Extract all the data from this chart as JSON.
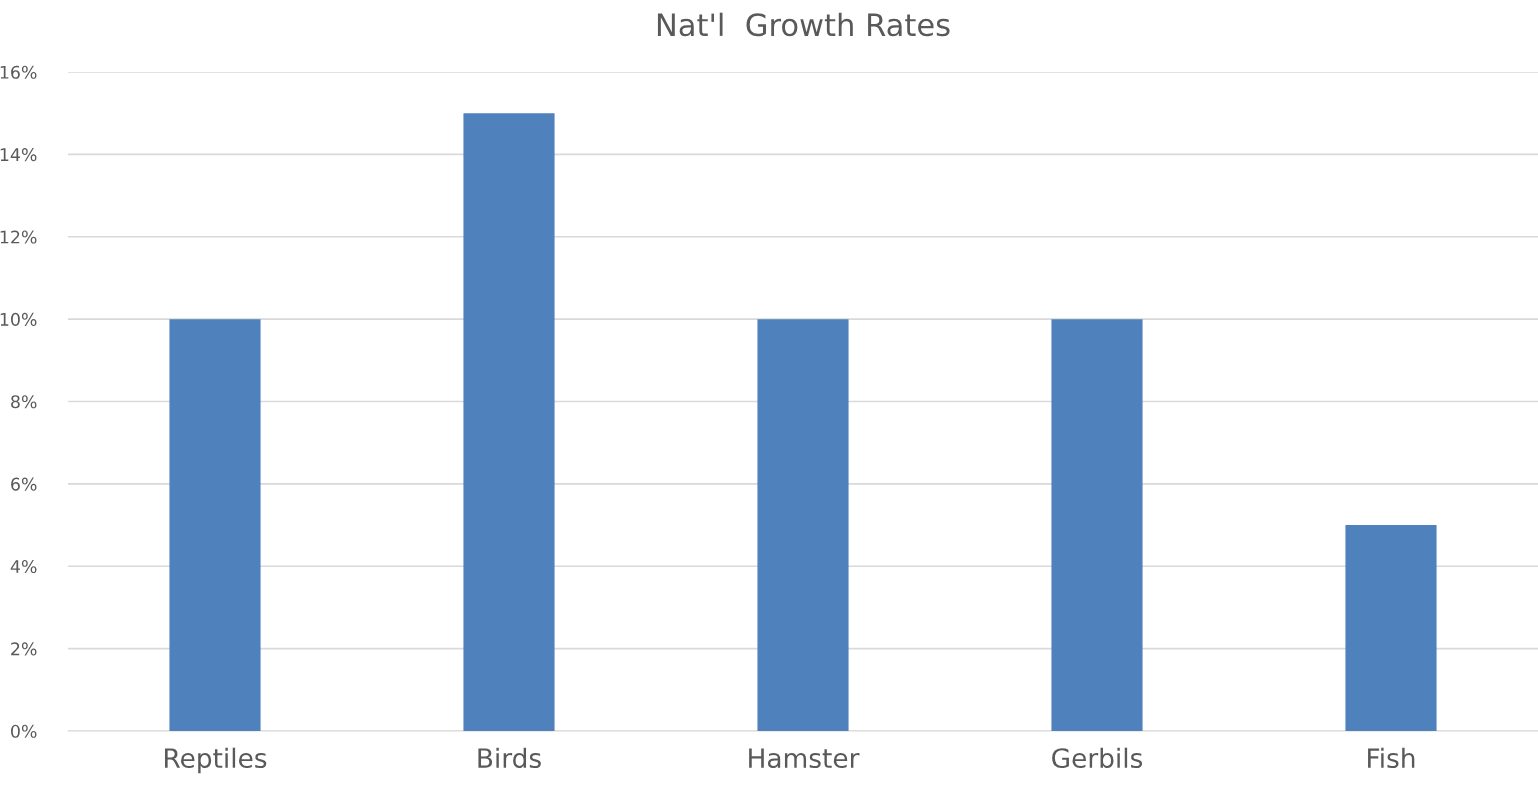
{
  "chart_data": {
    "type": "bar",
    "title": "Nat'l  Growth Rates",
    "categories": [
      "Reptiles",
      "Birds",
      "Hamster",
      "Gerbils",
      "Fish"
    ],
    "values": [
      10,
      15,
      10,
      10,
      5
    ],
    "color": "#4f81bd",
    "ylim": [
      0,
      16
    ],
    "yticks": [
      {
        "value": 0,
        "label": "0%"
      },
      {
        "value": 2,
        "label": "2%"
      },
      {
        "value": 4,
        "label": "4%"
      },
      {
        "value": 6,
        "label": "6%"
      },
      {
        "value": 8,
        "label": "8%"
      },
      {
        "value": 10,
        "label": "10%"
      },
      {
        "value": 12,
        "label": "12%"
      },
      {
        "value": 14,
        "label": "14%"
      },
      {
        "value": 16,
        "label": "16%"
      }
    ],
    "grid": "y"
  }
}
